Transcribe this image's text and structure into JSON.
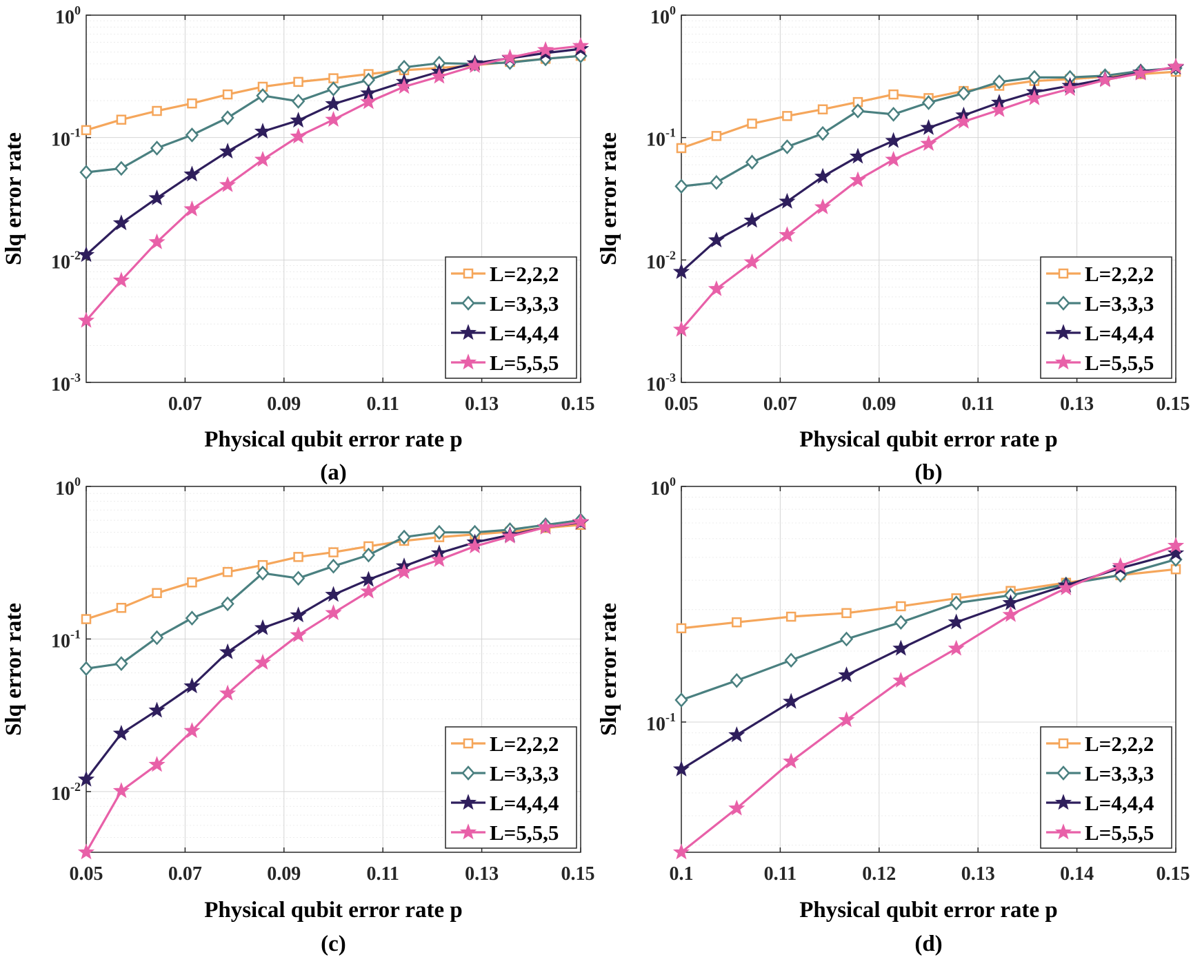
{
  "colors": {
    "L222": "#F5A65B",
    "L333": "#4A8080",
    "L444": "#2E1E5C",
    "L555": "#E860A8"
  },
  "chart_data": [
    {
      "type": "line",
      "panel": "(a)",
      "caption": "(a)",
      "xlabel": "Physical qubit error rate p",
      "ylabel": "Slq error rate",
      "yscale": "log",
      "xlim": [
        0.05,
        0.15
      ],
      "ylim": [
        0.001,
        1
      ],
      "xticks": [
        0.07,
        0.09,
        0.11,
        0.13,
        0.15
      ],
      "xtick_labels": [
        "0.07",
        "0.09",
        "0.11",
        "0.13",
        "0.15"
      ],
      "yticks": [
        0.001,
        0.01,
        0.1,
        1
      ],
      "ytick_labels": [
        {
          "base": "10",
          "exp": "-3"
        },
        {
          "base": "10",
          "exp": "-2"
        },
        {
          "base": "10",
          "exp": "-1"
        },
        {
          "base": "10",
          "exp": "0"
        }
      ],
      "legend_position": "bottom-right",
      "x": [
        0.05,
        0.0571,
        0.0643,
        0.0714,
        0.0786,
        0.0857,
        0.0929,
        0.1,
        0.1071,
        0.1143,
        0.1214,
        0.1286,
        0.1357,
        0.1429,
        0.15
      ],
      "series": [
        {
          "name": "L=2,2,2",
          "key": "L222",
          "marker": "square",
          "values": [
            0.115,
            0.14,
            0.165,
            0.19,
            0.225,
            0.26,
            0.285,
            0.305,
            0.33,
            0.355,
            0.37,
            0.39,
            0.415,
            0.44,
            0.465
          ]
        },
        {
          "name": "L=3,3,3",
          "key": "L333",
          "marker": "diamond",
          "values": [
            0.052,
            0.056,
            0.082,
            0.105,
            0.145,
            0.22,
            0.198,
            0.25,
            0.295,
            0.375,
            0.405,
            0.4,
            0.41,
            0.44,
            0.465
          ]
        },
        {
          "name": "L=4,4,4",
          "key": "L444",
          "marker": "star",
          "values": [
            0.011,
            0.02,
            0.032,
            0.05,
            0.077,
            0.112,
            0.138,
            0.188,
            0.23,
            0.285,
            0.345,
            0.405,
            0.445,
            0.49,
            0.53
          ]
        },
        {
          "name": "L=5,5,5",
          "key": "L555",
          "marker": "star",
          "values": [
            0.0032,
            0.0068,
            0.014,
            0.026,
            0.041,
            0.066,
            0.102,
            0.14,
            0.195,
            0.26,
            0.315,
            0.385,
            0.45,
            0.52,
            0.56
          ]
        }
      ]
    },
    {
      "type": "line",
      "panel": "(b)",
      "caption": "(b)",
      "xlabel": "Physical qubit error rate p",
      "ylabel": "Slq error rate",
      "yscale": "log",
      "xlim": [
        0.05,
        0.15
      ],
      "ylim": [
        0.001,
        1
      ],
      "xticks": [
        0.05,
        0.07,
        0.09,
        0.11,
        0.13,
        0.15
      ],
      "xtick_labels": [
        "0.05",
        "0.07",
        "0.09",
        "0.11",
        "0.13",
        "0.15"
      ],
      "yticks": [
        0.001,
        0.01,
        0.1,
        1
      ],
      "ytick_labels": [
        {
          "base": "10",
          "exp": "-3"
        },
        {
          "base": "10",
          "exp": "-2"
        },
        {
          "base": "10",
          "exp": "-1"
        },
        {
          "base": "10",
          "exp": "0"
        }
      ],
      "legend_position": "bottom-right",
      "x": [
        0.05,
        0.0571,
        0.0643,
        0.0714,
        0.0786,
        0.0857,
        0.0929,
        0.1,
        0.1071,
        0.1143,
        0.1214,
        0.1286,
        0.1357,
        0.1429,
        0.15
      ],
      "series": [
        {
          "name": "L=2,2,2",
          "key": "L222",
          "marker": "square",
          "values": [
            0.082,
            0.103,
            0.13,
            0.15,
            0.17,
            0.195,
            0.225,
            0.21,
            0.24,
            0.265,
            0.29,
            0.3,
            0.315,
            0.33,
            0.345
          ]
        },
        {
          "name": "L=3,3,3",
          "key": "L333",
          "marker": "diamond",
          "values": [
            0.04,
            0.043,
            0.063,
            0.084,
            0.108,
            0.165,
            0.155,
            0.193,
            0.23,
            0.285,
            0.31,
            0.31,
            0.32,
            0.35,
            0.37
          ]
        },
        {
          "name": "L=4,4,4",
          "key": "L444",
          "marker": "star",
          "values": [
            0.008,
            0.0145,
            0.021,
            0.03,
            0.048,
            0.07,
            0.094,
            0.12,
            0.152,
            0.193,
            0.235,
            0.265,
            0.3,
            0.34,
            0.375
          ]
        },
        {
          "name": "L=5,5,5",
          "key": "L555",
          "marker": "star",
          "values": [
            0.0027,
            0.0058,
            0.0096,
            0.016,
            0.027,
            0.045,
            0.066,
            0.089,
            0.135,
            0.168,
            0.21,
            0.25,
            0.295,
            0.335,
            0.38
          ]
        }
      ]
    },
    {
      "type": "line",
      "panel": "(c)",
      "caption": "(c)",
      "xlabel": "Physical qubit error rate p",
      "ylabel": "Slq error rate",
      "yscale": "log",
      "xlim": [
        0.05,
        0.15
      ],
      "ylim": [
        0.004,
        1
      ],
      "xticks": [
        0.05,
        0.07,
        0.09,
        0.11,
        0.13,
        0.15
      ],
      "xtick_labels": [
        "0.05",
        "0.07",
        "0.09",
        "0.11",
        "0.13",
        "0.15"
      ],
      "yticks": [
        0.01,
        0.1,
        1
      ],
      "ytick_labels": [
        {
          "base": "10",
          "exp": "-2"
        },
        {
          "base": "10",
          "exp": "-1"
        },
        {
          "base": "10",
          "exp": "0"
        }
      ],
      "legend_position": "bottom-right",
      "x": [
        0.05,
        0.0571,
        0.0643,
        0.0714,
        0.0786,
        0.0857,
        0.0929,
        0.1,
        0.1071,
        0.1143,
        0.1214,
        0.1286,
        0.1357,
        0.1429,
        0.15
      ],
      "series": [
        {
          "name": "L=2,2,2",
          "key": "L222",
          "marker": "square",
          "values": [
            0.135,
            0.16,
            0.2,
            0.235,
            0.275,
            0.305,
            0.345,
            0.37,
            0.405,
            0.44,
            0.465,
            0.485,
            0.505,
            0.535,
            0.56
          ]
        },
        {
          "name": "L=3,3,3",
          "key": "L333",
          "marker": "diamond",
          "values": [
            0.064,
            0.069,
            0.102,
            0.137,
            0.17,
            0.27,
            0.25,
            0.3,
            0.355,
            0.465,
            0.5,
            0.5,
            0.52,
            0.56,
            0.6
          ]
        },
        {
          "name": "L=4,4,4",
          "key": "L444",
          "marker": "star",
          "values": [
            0.012,
            0.024,
            0.034,
            0.049,
            0.082,
            0.118,
            0.143,
            0.195,
            0.245,
            0.3,
            0.365,
            0.43,
            0.48,
            0.54,
            0.58
          ]
        },
        {
          "name": "L=5,5,5",
          "key": "L555",
          "marker": "star",
          "values": [
            0.004,
            0.0101,
            0.015,
            0.025,
            0.044,
            0.07,
            0.106,
            0.148,
            0.205,
            0.275,
            0.33,
            0.405,
            0.47,
            0.54,
            0.585
          ]
        }
      ]
    },
    {
      "type": "line",
      "panel": "(d)",
      "caption": "(d)",
      "xlabel": "Physical qubit error rate p",
      "ylabel": "Slq error rate",
      "yscale": "log",
      "xlim": [
        0.1,
        0.15
      ],
      "ylim": [
        0.028,
        1
      ],
      "xticks": [
        0.1,
        0.11,
        0.12,
        0.13,
        0.14,
        0.15
      ],
      "xtick_labels": [
        "0.1",
        "0.11",
        "0.12",
        "0.13",
        "0.14",
        "0.15"
      ],
      "yticks": [
        0.1,
        1
      ],
      "ytick_labels": [
        {
          "base": "10",
          "exp": "-1"
        },
        {
          "base": "10",
          "exp": "0"
        }
      ],
      "legend_position": "bottom-right",
      "x": [
        0.1,
        0.1056,
        0.1111,
        0.1167,
        0.1222,
        0.1278,
        0.1333,
        0.1389,
        0.1444,
        0.15
      ],
      "series": [
        {
          "name": "L=2,2,2",
          "key": "L222",
          "marker": "square",
          "values": [
            0.25,
            0.265,
            0.28,
            0.29,
            0.31,
            0.335,
            0.36,
            0.39,
            0.42,
            0.445
          ]
        },
        {
          "name": "L=3,3,3",
          "key": "L333",
          "marker": "diamond",
          "values": [
            0.124,
            0.15,
            0.183,
            0.225,
            0.265,
            0.32,
            0.345,
            0.385,
            0.42,
            0.49
          ]
        },
        {
          "name": "L=4,4,4",
          "key": "L444",
          "marker": "star",
          "values": [
            0.063,
            0.088,
            0.122,
            0.158,
            0.205,
            0.265,
            0.32,
            0.38,
            0.45,
            0.52
          ]
        },
        {
          "name": "L=5,5,5",
          "key": "L555",
          "marker": "star",
          "values": [
            0.028,
            0.043,
            0.068,
            0.102,
            0.15,
            0.205,
            0.285,
            0.37,
            0.46,
            0.56
          ]
        }
      ]
    }
  ]
}
